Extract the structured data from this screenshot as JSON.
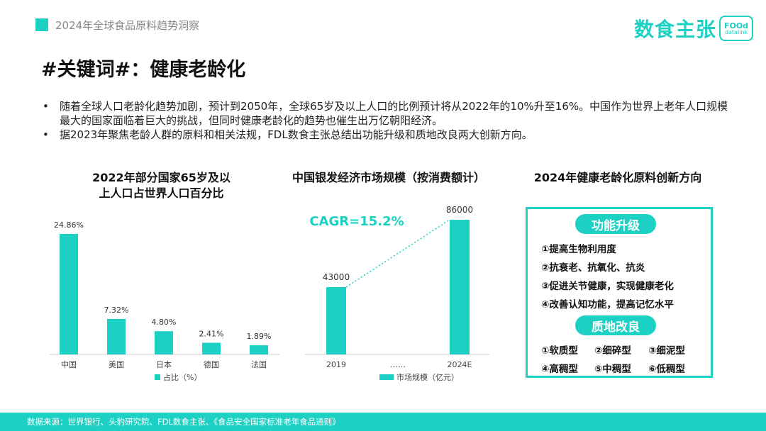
{
  "header": {
    "title": "2024年全球食品原料趋势洞察",
    "logo_text": "数食主张",
    "logo_box_line1": "FOOd",
    "logo_box_line2": "datalink"
  },
  "page_title": "#关键词#：健康老龄化",
  "bullets": [
    "随着全球人口老龄化趋势加剧，预计到2050年，全球65岁及以上人口的比例预计将从2022年的10%升至16%。中国作为世界上老年人口规模最大的国家面临着巨大的挑战，但同时健康老龄化的趋势也催生出万亿朝阳经济。",
    "据2023年聚焦老龄人群的原料和相关法规，FDL数食主张总结出功能升级和质地改良两大创新方向。"
  ],
  "chart_data": [
    {
      "type": "bar",
      "title": "2022年部分国家65岁及以上人口占世界人口百分比",
      "title_line1": "2022年部分国家65岁及以",
      "title_line2": "上人口占世界人口百分比",
      "categories": [
        "中国",
        "美国",
        "日本",
        "德国",
        "法国"
      ],
      "series": [
        {
          "name": "占比（%）",
          "values": [
            24.86,
            7.32,
            4.8,
            2.41,
            1.89
          ]
        }
      ],
      "value_labels": [
        "24.86%",
        "7.32%",
        "4.80%",
        "2.41%",
        "1.89%"
      ],
      "ylim": [
        0,
        26
      ],
      "grid": false,
      "legend": "bottom",
      "color": "#1cd1c4"
    },
    {
      "type": "bar",
      "title": "中国银发经济市场规模（按消费额计）",
      "categories": [
        "2019",
        "……",
        "2024E"
      ],
      "series": [
        {
          "name": "市场规模（亿元）",
          "values": [
            43000,
            null,
            86000
          ]
        }
      ],
      "value_labels": [
        "43000",
        "",
        "86000"
      ],
      "annotation": "CAGR=15.2%",
      "ylim": [
        0,
        90000
      ],
      "grid": false,
      "legend": "bottom",
      "color": "#1cd1c4"
    }
  ],
  "innovation": {
    "title": "2024年健康老龄化原料创新方向",
    "function_label": "功能升级",
    "function_items": [
      "①提高生物利用度",
      "②抗衰老、抗氧化、抗炎",
      "③促进关节健康，实现健康老化",
      "④改善认知功能，提高记忆水平"
    ],
    "texture_label": "质地改良",
    "texture_items": [
      "①软质型",
      "②细碎型",
      "③细泥型",
      "④高稠型",
      "⑤中稠型",
      "⑥低稠型"
    ]
  },
  "footer": {
    "source": "数据来源：世界银行、头豹研究院、FDL数食主张、《食品安全国家标准老年食品通则》"
  },
  "colors": {
    "accent": "#1cd1c4"
  }
}
